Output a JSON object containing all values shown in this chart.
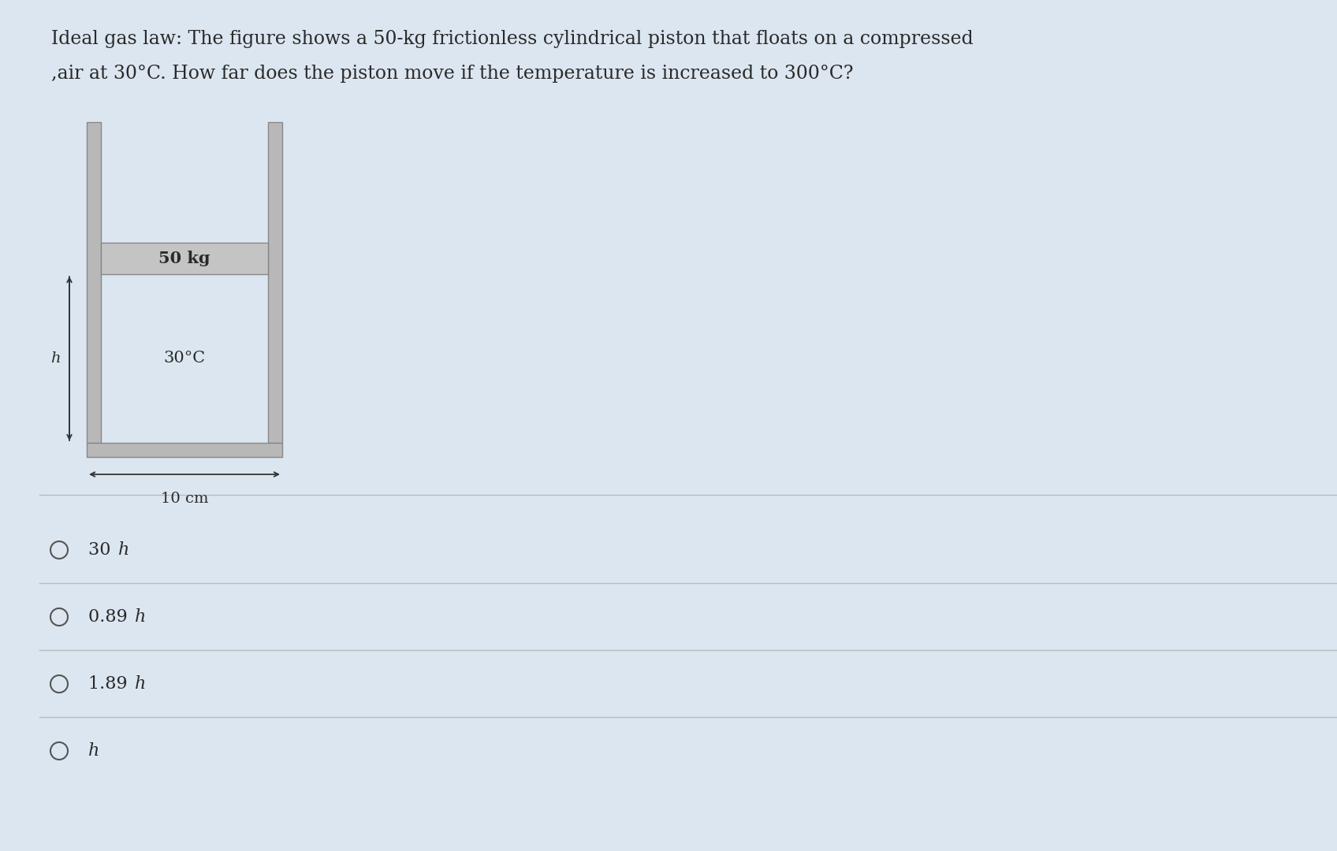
{
  "background_color": "#dce6f0",
  "title_line1": "Ideal gas law: The figure shows a 50-kg frictionless cylindrical piston that floats on a compressed",
  "title_line2": ",air at 30°C. How far does the piston move if the temperature is increased to 300°C?",
  "piston_label": "50 kg",
  "gas_label": "30°C",
  "width_label": "10 cm",
  "height_label": "h",
  "choices": [
    "30 h",
    "0.89 h",
    "1.89 h",
    "h"
  ],
  "text_color": "#2a2a2a",
  "wall_color": "#b8b8b8",
  "wall_edge_color": "#888888",
  "piston_color": "#c4c4c4",
  "piston_edge_color": "#888888",
  "separator_color": "#bbbbbb",
  "arrow_color": "#333333",
  "circle_color": "#555555",
  "title_fontsize": 17,
  "choice_fontsize": 16,
  "label_fontsize": 14,
  "diagram_label_fontsize": 15
}
